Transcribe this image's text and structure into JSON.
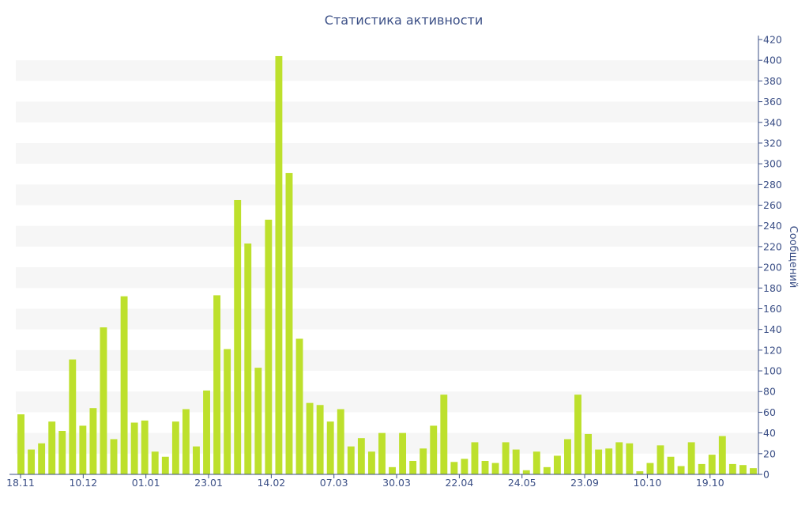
{
  "chart_data": {
    "type": "bar",
    "title": "Статистика активности",
    "ylabel": "Сообщений",
    "ylim": [
      0,
      420
    ],
    "y_ticks": [
      0,
      20,
      40,
      60,
      80,
      100,
      120,
      140,
      160,
      180,
      200,
      220,
      240,
      260,
      280,
      300,
      320,
      340,
      360,
      380,
      400,
      420
    ],
    "x_tick_labels": [
      "18.11",
      "10.12",
      "01.01",
      "23.01",
      "14.02",
      "07.03",
      "30.03",
      "22.04",
      "24.05",
      "23.09",
      "10.10",
      "19.10"
    ],
    "y_axis_position": "right",
    "bar_color": "#bde02c",
    "axis_color": "#3b4f86",
    "band_color": "#f6f6f6",
    "values": [
      58,
      24,
      30,
      51,
      42,
      111,
      47,
      64,
      142,
      34,
      172,
      50,
      52,
      22,
      17,
      51,
      63,
      27,
      81,
      173,
      121,
      265,
      223,
      103,
      246,
      404,
      291,
      131,
      69,
      67,
      51,
      63,
      27,
      35,
      22,
      40,
      7,
      40,
      13,
      25,
      47,
      77,
      12,
      15,
      31,
      13,
      11,
      31,
      24,
      4,
      22,
      7,
      18,
      34,
      77,
      39,
      24,
      25,
      31,
      30,
      3,
      11,
      28,
      17,
      8,
      31,
      10,
      19,
      37,
      10,
      9,
      6
    ]
  }
}
